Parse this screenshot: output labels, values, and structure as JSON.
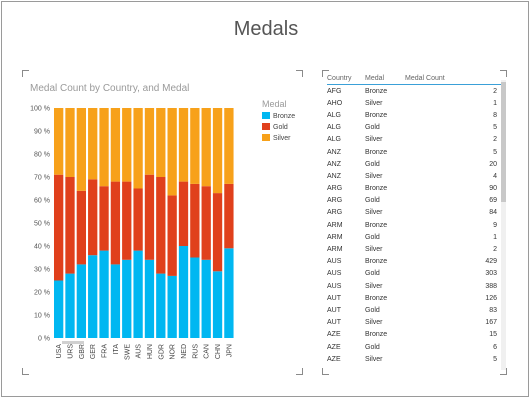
{
  "report": {
    "title": "Medals"
  },
  "chart_data": {
    "type": "bar",
    "stacked": "100%",
    "title": "Medal Count by Country, and Medal",
    "legend": {
      "title": "Medal",
      "position": "right"
    },
    "categories": [
      "USA",
      "URS",
      "GBR",
      "GER",
      "FRA",
      "ITA",
      "SWE",
      "AUS",
      "HUN",
      "GDR",
      "NOR",
      "NED",
      "RUS",
      "CAN",
      "CHN",
      "JPN"
    ],
    "y_ticks": [
      "100 %",
      "90 %",
      "80 %",
      "70 %",
      "60 %",
      "50 %",
      "40 %",
      "30 %",
      "20 %",
      "10 %",
      "0 %"
    ],
    "ylim": [
      0,
      100
    ],
    "series": [
      {
        "name": "Bronze",
        "color": "#00b7f1",
        "values": [
          25,
          28,
          32,
          36,
          38,
          32,
          34,
          38,
          34,
          28,
          27,
          40,
          35,
          34,
          29,
          39
        ]
      },
      {
        "name": "Gold",
        "color": "#e0401c",
        "values": [
          46,
          42,
          32,
          33,
          28,
          36,
          34,
          27,
          37,
          42,
          35,
          28,
          32,
          32,
          34,
          28
        ]
      },
      {
        "name": "Silver",
        "color": "#f7a11a",
        "values": [
          29,
          30,
          36,
          31,
          34,
          32,
          32,
          35,
          29,
          30,
          38,
          32,
          33,
          34,
          37,
          33
        ]
      }
    ]
  },
  "table": {
    "headers": [
      "Country",
      "Medal",
      "Medal Count"
    ],
    "rows": [
      [
        "AFG",
        "Bronze",
        "2"
      ],
      [
        "AHO",
        "Silver",
        "1"
      ],
      [
        "ALG",
        "Bronze",
        "8"
      ],
      [
        "ALG",
        "Gold",
        "5"
      ],
      [
        "ALG",
        "Silver",
        "2"
      ],
      [
        "ANZ",
        "Bronze",
        "5"
      ],
      [
        "ANZ",
        "Gold",
        "20"
      ],
      [
        "ANZ",
        "Silver",
        "4"
      ],
      [
        "ARG",
        "Bronze",
        "90"
      ],
      [
        "ARG",
        "Gold",
        "69"
      ],
      [
        "ARG",
        "Silver",
        "84"
      ],
      [
        "ARM",
        "Bronze",
        "9"
      ],
      [
        "ARM",
        "Gold",
        "1"
      ],
      [
        "ARM",
        "Silver",
        "2"
      ],
      [
        "AUS",
        "Bronze",
        "429"
      ],
      [
        "AUS",
        "Gold",
        "303"
      ],
      [
        "AUS",
        "Silver",
        "388"
      ],
      [
        "AUT",
        "Bronze",
        "126"
      ],
      [
        "AUT",
        "Gold",
        "83"
      ],
      [
        "AUT",
        "Silver",
        "167"
      ],
      [
        "AZE",
        "Bronze",
        "15"
      ],
      [
        "AZE",
        "Gold",
        "6"
      ],
      [
        "AZE",
        "Silver",
        "5"
      ]
    ]
  }
}
